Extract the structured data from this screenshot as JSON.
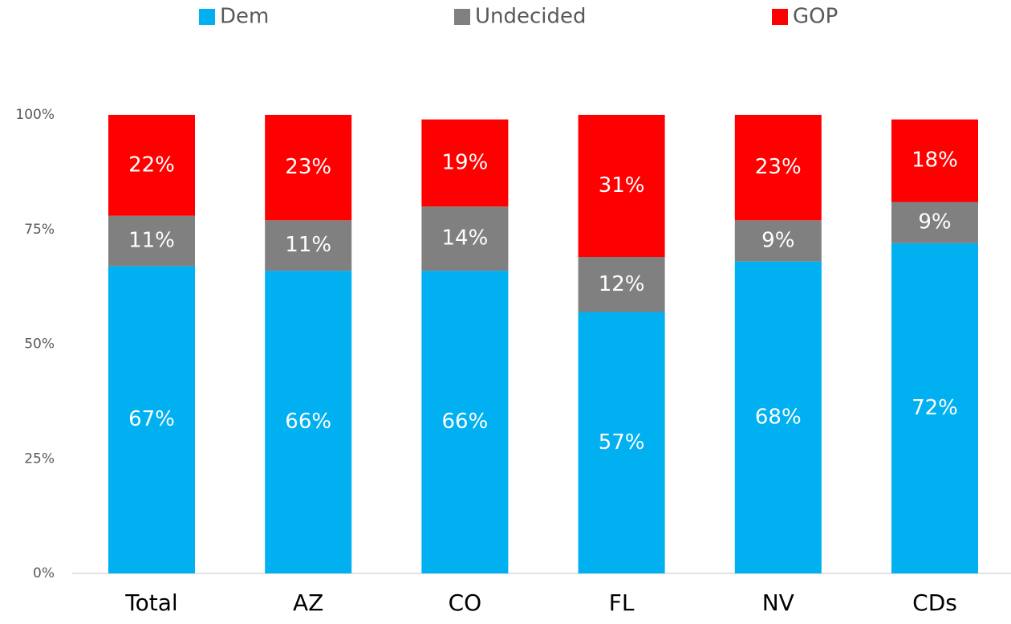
{
  "chart_data": {
    "type": "stacked_bar",
    "categories": [
      "Total",
      "AZ",
      "CO",
      "FL",
      "NV",
      "CDs"
    ],
    "series": [
      {
        "name": "Dem",
        "color": "#00b0f0",
        "values": [
          67,
          66,
          66,
          57,
          68,
          72
        ],
        "value_labels": [
          "67%",
          "66%",
          "66%",
          "57%",
          "68%",
          "72%"
        ]
      },
      {
        "name": "Undecided",
        "color": "#808080",
        "values": [
          11,
          11,
          14,
          12,
          9,
          9
        ],
        "value_labels": [
          "11%",
          "11%",
          "14%",
          "12%",
          "9%",
          "9%"
        ]
      },
      {
        "name": "GOP",
        "color": "#ff0000",
        "values": [
          22,
          23,
          19,
          31,
          23,
          18
        ],
        "value_labels": [
          "22%",
          "23%",
          "19%",
          "31%",
          "23%",
          "18%"
        ]
      }
    ],
    "ylim": [
      0,
      100
    ],
    "yticks": [
      {
        "value": 0,
        "label": "0%"
      },
      {
        "value": 25,
        "label": "25%"
      },
      {
        "value": 50,
        "label": "50%"
      },
      {
        "value": 75,
        "label": "75%"
      },
      {
        "value": 100,
        "label": "100%"
      }
    ],
    "legend": "top"
  }
}
